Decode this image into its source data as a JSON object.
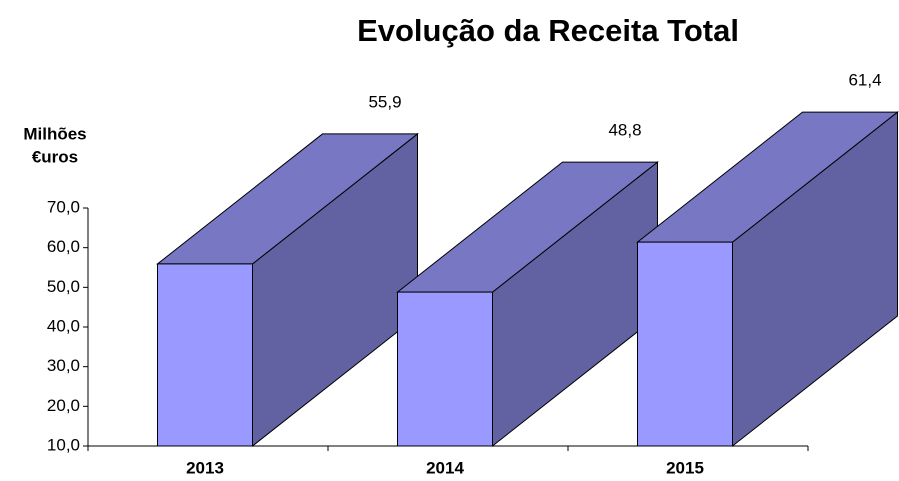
{
  "chart_data": {
    "type": "bar3d",
    "title": "Evolução da Receita Total",
    "ylabel": [
      "Milhões",
      "€uros"
    ],
    "categories": [
      "2013",
      "2014",
      "2015"
    ],
    "values": [
      55.9,
      48.8,
      61.4
    ],
    "value_labels": [
      "55,9",
      "48,8",
      "61,4"
    ],
    "colors": {
      "front": "#9999ff",
      "top": "#7777c4",
      "side": "#6262a3"
    },
    "ylim": [
      10,
      70
    ],
    "yticks": [
      {
        "value": 10,
        "label": "10,0"
      },
      {
        "value": 20,
        "label": "20,0"
      },
      {
        "value": 30,
        "label": "30,0"
      },
      {
        "value": 40,
        "label": "40,0"
      },
      {
        "value": 50,
        "label": "50,0"
      },
      {
        "value": 60,
        "label": "60,0"
      },
      {
        "value": 70,
        "label": "70,0"
      }
    ]
  }
}
